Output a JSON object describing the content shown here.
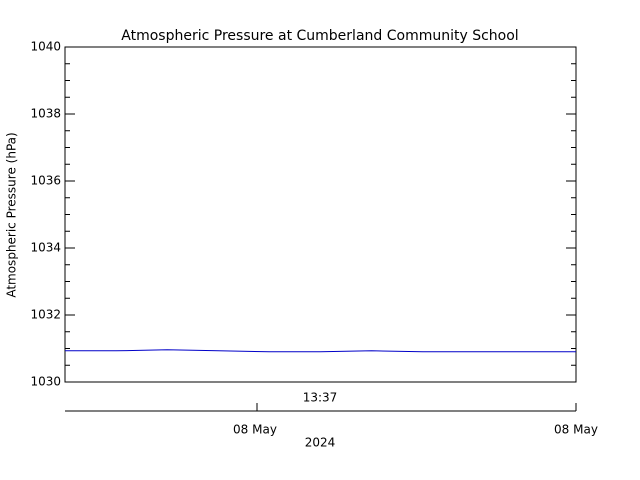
{
  "chart_data": {
    "type": "line",
    "title": "Atmospheric Pressure at Cumberland Community School",
    "y_label": "Atmospheric Pressure (hPa)",
    "series": [
      {
        "color": "#0000c8",
        "values": [
          1030.93,
          1030.93,
          1030.96,
          1030.93,
          1030.9,
          1030.9,
          1030.93,
          1030.9,
          1030.9,
          1030.9,
          1030.9
        ]
      }
    ],
    "ylim": [
      1030,
      1040
    ],
    "yticks": [
      1030,
      1032,
      1034,
      1036,
      1038,
      1040
    ],
    "time_axis": {
      "label": "13:37",
      "ticks": [
        "08 May",
        "08 May"
      ],
      "year": "2024"
    }
  }
}
